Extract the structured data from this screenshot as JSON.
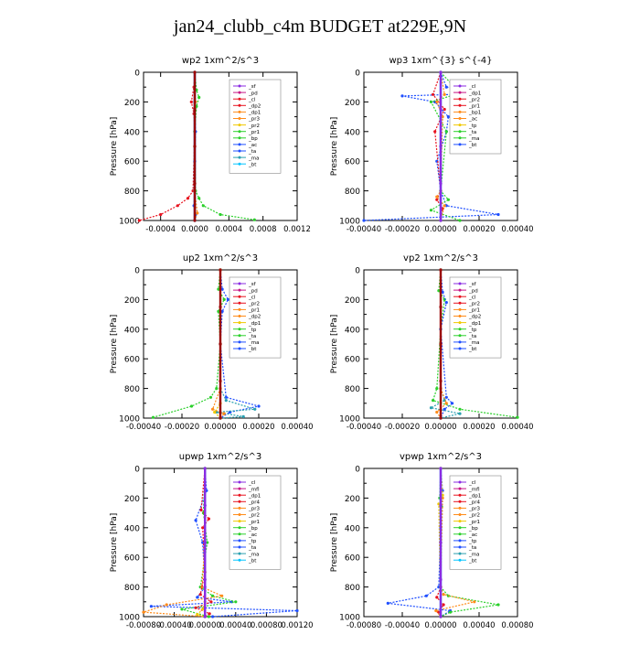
{
  "page_title": "jan24_clubb_c4m  BUDGET at229E,9N",
  "colors": {
    "purple": "#8a2be2",
    "magenta": "#c71585",
    "red": "#e8131f",
    "orange": "#ff8c1a",
    "yellow": "#f0c800",
    "green": "#2bd02b",
    "blue": "#1f4fff",
    "cyan": "#00c4ff",
    "darkred": "#9a0000",
    "teal": "#2aa0b0"
  },
  "chart_data": [
    {
      "type": "line",
      "title": "wp2  1xm^2/s^3",
      "ylabel": "Pressure [hPa]",
      "xlim": [
        -0.0006,
        0.0012
      ],
      "ylim": [
        1000,
        0
      ],
      "xticks": [
        -0.0004,
        0.0,
        0.0004,
        0.0008,
        0.0012
      ],
      "xtick_labels": [
        "-0.0004",
        "0.0000",
        "0.0004",
        "0.0008",
        "0.0012"
      ],
      "yticks": [
        0,
        200,
        400,
        600,
        800,
        1000
      ],
      "ytick_labels": [
        "0",
        "200",
        "400",
        "600",
        "800",
        "1000"
      ],
      "legend": [
        "_sf",
        "_pd",
        "_cl",
        "_dp2",
        "_dp1",
        "_pr3",
        "_pr2",
        "_pr1",
        "_bp",
        "_ac",
        "_ta",
        "_ma",
        "_bt"
      ],
      "series": [
        {
          "name": "_pd",
          "color": "purple",
          "x": [
            0,
            0,
            0,
            0,
            0,
            0
          ],
          "y": [
            0,
            200,
            400,
            600,
            800,
            1000
          ]
        },
        {
          "name": "_dp2",
          "color": "red",
          "x": [
            0,
            -1e-05,
            -4e-05,
            -1e-05,
            0,
            -2e-05,
            -8e-05,
            -0.0002,
            -0.0004,
            -0.00065
          ],
          "y": [
            0,
            100,
            200,
            280,
            400,
            800,
            850,
            900,
            960,
            1000
          ]
        },
        {
          "name": "_bp",
          "color": "green",
          "x": [
            0,
            2e-05,
            5e-05,
            2e-05,
            0,
            1e-05,
            5e-05,
            0.0001,
            0.0003,
            0.0007
          ],
          "y": [
            0,
            120,
            170,
            230,
            400,
            800,
            850,
            900,
            960,
            995
          ]
        },
        {
          "name": "_ta",
          "color": "blue",
          "x": [
            0,
            0,
            1e-05,
            0,
            0,
            -1e-05,
            1e-05,
            0
          ],
          "y": [
            0,
            200,
            400,
            600,
            800,
            900,
            960,
            1000
          ]
        },
        {
          "name": "_pr1",
          "color": "orange",
          "x": [
            0,
            1e-05,
            0,
            0,
            3e-05,
            0
          ],
          "y": [
            0,
            200,
            500,
            800,
            950,
            1000
          ]
        },
        {
          "name": "_bt",
          "color": "cyan",
          "x": [
            0,
            0,
            0,
            0,
            0
          ],
          "y": [
            0,
            250,
            500,
            750,
            1000
          ]
        },
        {
          "name": "_cl",
          "color": "darkred",
          "x": [
            0,
            0,
            0,
            0,
            0
          ],
          "y": [
            0,
            250,
            500,
            750,
            1000
          ]
        }
      ]
    },
    {
      "type": "line",
      "title": "wp3  1xm^{3} s^{-4}",
      "ylabel": "Pressure [hPa]",
      "xlim": [
        -0.0004,
        0.0004
      ],
      "ylim": [
        1000,
        0
      ],
      "xticks": [
        -0.0004,
        -0.0002,
        0.0,
        0.0002,
        0.0004
      ],
      "xtick_labels": [
        "-0.00040",
        "-0.00020",
        "0.00000",
        "0.00020",
        "0.00040"
      ],
      "yticks": [
        0,
        200,
        400,
        600,
        800,
        1000
      ],
      "ytick_labels": [
        "0",
        "200",
        "400",
        "600",
        "800",
        "1000"
      ],
      "legend": [
        "_cl",
        "_dp1",
        "_pr2",
        "_pr1",
        "_bp1",
        "_ac",
        "_tp",
        "_ta",
        "_ma",
        "_bt"
      ],
      "series": [
        {
          "name": "_ta",
          "color": "blue",
          "x": [
            0,
            3e-05,
            0.0003,
            -0.0002,
            -3e-05,
            4e-05,
            3e-05,
            -2e-05,
            0,
            3e-05,
            0.0003,
            -0.0004
          ],
          "y": [
            0,
            100,
            140,
            160,
            200,
            300,
            400,
            600,
            800,
            900,
            960,
            1000
          ]
        },
        {
          "name": "_dp1",
          "color": "red",
          "x": [
            0,
            -4e-05,
            2e-05,
            -3e-05,
            0,
            -2e-05,
            1e-05,
            0
          ],
          "y": [
            0,
            150,
            250,
            400,
            800,
            860,
            920,
            1000
          ]
        },
        {
          "name": "_ac",
          "color": "green",
          "x": [
            0,
            0.0001,
            -5e-05,
            3e-05,
            0,
            4e-05,
            -5e-05,
            0.0001
          ],
          "y": [
            0,
            140,
            200,
            400,
            800,
            860,
            930,
            1000
          ]
        },
        {
          "name": "_pr2",
          "color": "orange",
          "x": [
            0,
            2e-05,
            -2e-05,
            1e-05,
            0,
            -2e-05,
            2e-05,
            0
          ],
          "y": [
            0,
            150,
            200,
            300,
            800,
            840,
            900,
            1000
          ]
        },
        {
          "name": "_bt",
          "color": "cyan",
          "x": [
            0,
            0,
            0,
            0,
            0
          ],
          "y": [
            0,
            250,
            500,
            750,
            1000
          ]
        },
        {
          "name": "_cl",
          "color": "purple",
          "x": [
            0,
            0,
            0,
            0,
            0
          ],
          "y": [
            0,
            250,
            500,
            750,
            1000
          ]
        }
      ]
    },
    {
      "type": "line",
      "title": "up2  1xm^2/s^3",
      "ylabel": "Pressure [hPa]",
      "xlim": [
        -0.0004,
        0.0004
      ],
      "ylim": [
        1000,
        0
      ],
      "xticks": [
        -0.0004,
        -0.0002,
        0.0,
        0.0002,
        0.0004
      ],
      "xtick_labels": [
        "-0.00040",
        "-0.00020",
        "0.00000",
        "0.00020",
        "0.00040"
      ],
      "yticks": [
        0,
        200,
        400,
        600,
        800,
        1000
      ],
      "ytick_labels": [
        "0",
        "200",
        "400",
        "600",
        "800",
        "1000"
      ],
      "legend": [
        "_sf",
        "_pd",
        "_cl",
        "_pr2",
        "_pr1",
        "_dp2",
        "_dp1",
        "_tp",
        "_ta",
        "_ma",
        "_bt"
      ],
      "series": [
        {
          "name": "_dp1",
          "color": "green",
          "x": [
            0,
            -1e-05,
            2e-05,
            -1e-05,
            0,
            -2e-05,
            -5e-05,
            -0.00015,
            -0.00035
          ],
          "y": [
            0,
            130,
            200,
            280,
            500,
            800,
            860,
            920,
            995
          ]
        },
        {
          "name": "_tp",
          "color": "blue",
          "x": [
            0,
            1e-05,
            4e-05,
            1e-05,
            0,
            3e-05,
            0.0002,
            5e-05,
            0
          ],
          "y": [
            0,
            130,
            200,
            280,
            500,
            860,
            920,
            960,
            1000
          ]
        },
        {
          "name": "_ta",
          "color": "teal",
          "x": [
            0,
            0,
            3e-05,
            0.00018,
            -2e-05,
            0.00012,
            0
          ],
          "y": [
            0,
            800,
            880,
            940,
            960,
            990,
            1000
          ]
        },
        {
          "name": "_pr1",
          "color": "orange",
          "x": [
            0,
            0,
            0,
            -4e-05,
            2e-05,
            0
          ],
          "y": [
            0,
            500,
            800,
            940,
            970,
            1000
          ]
        },
        {
          "name": "_dp2",
          "color": "yellow",
          "x": [
            0,
            0,
            -3e-05,
            0
          ],
          "y": [
            0,
            900,
            960,
            1000
          ]
        },
        {
          "name": "_pd",
          "color": "darkred",
          "x": [
            0,
            0,
            0,
            0,
            0
          ],
          "y": [
            0,
            250,
            500,
            750,
            1000
          ]
        }
      ]
    },
    {
      "type": "line",
      "title": "vp2  1xm^2/s^3",
      "ylabel": "Pressure [hPa]",
      "xlim": [
        -0.0004,
        0.0004
      ],
      "ylim": [
        1000,
        0
      ],
      "xticks": [
        -0.0004,
        -0.0002,
        0.0,
        0.0002,
        0.0004
      ],
      "xtick_labels": [
        "-0.00040",
        "-0.00020",
        "0.00000",
        "0.00020",
        "0.00040"
      ],
      "yticks": [
        0,
        200,
        400,
        600,
        800,
        1000
      ],
      "ytick_labels": [
        "0",
        "200",
        "400",
        "600",
        "800",
        "1000"
      ],
      "legend": [
        "_sf",
        "_pd",
        "_cl",
        "_pr2",
        "_pr1",
        "_dp2",
        "_dp1",
        "_tp",
        "_ta",
        "_ma",
        "_bt"
      ],
      "series": [
        {
          "name": "_dp1",
          "color": "green",
          "x": [
            0,
            -1e-05,
            2e-05,
            0,
            -2e-05,
            -4e-05,
            0.0001,
            0.0004
          ],
          "y": [
            0,
            140,
            200,
            400,
            800,
            880,
            940,
            995
          ]
        },
        {
          "name": "_tp",
          "color": "blue",
          "x": [
            0,
            1e-05,
            3e-05,
            0,
            3e-05,
            6e-05,
            2e-05,
            0
          ],
          "y": [
            0,
            150,
            220,
            400,
            860,
            900,
            940,
            1000
          ]
        },
        {
          "name": "_ta",
          "color": "teal",
          "x": [
            0,
            0,
            2e-05,
            -5e-05,
            0.0001,
            0
          ],
          "y": [
            0,
            800,
            880,
            930,
            970,
            1000
          ]
        },
        {
          "name": "_pr1",
          "color": "orange",
          "x": [
            0,
            0,
            3e-05,
            -2e-05,
            0
          ],
          "y": [
            0,
            800,
            900,
            960,
            1000
          ]
        },
        {
          "name": "_pd",
          "color": "darkred",
          "x": [
            0,
            0,
            0,
            0,
            0
          ],
          "y": [
            0,
            250,
            500,
            750,
            1000
          ]
        }
      ]
    },
    {
      "type": "line",
      "title": "upwp  1xm^2/s^3",
      "ylabel": "Pressure [hPa]",
      "xlim": [
        -0.0008,
        0.0012
      ],
      "ylim": [
        1000,
        0
      ],
      "xticks": [
        -0.0008,
        -0.0004,
        0.0,
        0.0004,
        0.0008,
        0.0012
      ],
      "xtick_labels": [
        "-0.00080",
        "-0.00040",
        "0.00000",
        "0.00040",
        "0.00080",
        "0.00120"
      ],
      "yticks": [
        0,
        200,
        400,
        600,
        800,
        1000
      ],
      "ytick_labels": [
        "0",
        "200",
        "400",
        "600",
        "800",
        "1000"
      ],
      "legend": [
        "_cl",
        "_mfl",
        "_dp1",
        "_pr4",
        "_pr3",
        "_pr2",
        "_pr1",
        "_bp",
        "_ac",
        "_tp",
        "_ta",
        "_ma",
        "_bt"
      ],
      "series": [
        {
          "name": "_ta",
          "color": "blue",
          "x": [
            0,
            2e-05,
            -0.00012,
            -3e-05,
            0,
            -0.0001,
            0.00035,
            -0.0007,
            0.0012,
            0.0001
          ],
          "y": [
            0,
            150,
            350,
            500,
            800,
            870,
            900,
            930,
            960,
            1000
          ]
        },
        {
          "name": "_bp",
          "color": "green",
          "x": [
            0,
            -2e-05,
            3e-05,
            -6e-05,
            0.0001,
            0.0004,
            -0.0003,
            5e-05
          ],
          "y": [
            0,
            300,
            500,
            800,
            860,
            900,
            950,
            1000
          ]
        },
        {
          "name": "_pr1",
          "color": "orange",
          "x": [
            0,
            0,
            -4e-05,
            0.00022,
            -0.0005,
            -0.0008,
            0
          ],
          "y": [
            0,
            500,
            800,
            860,
            920,
            970,
            1000
          ]
        },
        {
          "name": "_dp1",
          "color": "red",
          "x": [
            0,
            -5e-05,
            5e-05,
            -3e-05,
            0,
            -6e-05,
            8e-05,
            -0.00012,
            6e-05,
            0
          ],
          "y": [
            0,
            280,
            340,
            400,
            700,
            850,
            900,
            940,
            980,
            1000
          ]
        },
        {
          "name": "_pr3",
          "color": "yellow",
          "x": [
            0,
            0,
            -3e-05,
            -0.0001,
            0
          ],
          "y": [
            0,
            900,
            950,
            985,
            1000
          ]
        },
        {
          "name": "_bt",
          "color": "cyan",
          "x": [
            0,
            0,
            0,
            0,
            0
          ],
          "y": [
            0,
            250,
            500,
            750,
            1000
          ]
        },
        {
          "name": "_mfl",
          "color": "purple",
          "x": [
            0,
            0,
            0,
            0,
            0
          ],
          "y": [
            0,
            250,
            500,
            750,
            1000
          ]
        }
      ]
    },
    {
      "type": "line",
      "title": "vpwp  1xm^2/s^3",
      "ylabel": "Pressure [hPa]",
      "xlim": [
        -0.0008,
        0.0008
      ],
      "ylim": [
        1000,
        0
      ],
      "xticks": [
        -0.0008,
        -0.0004,
        0.0,
        0.0004,
        0.0008
      ],
      "xtick_labels": [
        "-0.00080",
        "-0.00040",
        "0.00000",
        "0.00040",
        "0.00080"
      ],
      "yticks": [
        0,
        200,
        400,
        600,
        800,
        1000
      ],
      "ytick_labels": [
        "0",
        "200",
        "400",
        "600",
        "800",
        "1000"
      ],
      "legend": [
        "_cl",
        "_mfl",
        "_dp1",
        "_pr4",
        "_pr3",
        "_pr2",
        "_pr1",
        "_bp",
        "_ac",
        "_tp",
        "_ta",
        "_ma",
        "_bt"
      ],
      "series": [
        {
          "name": "_ta",
          "color": "blue",
          "x": [
            0,
            2e-05,
            0,
            -2e-05,
            -0.00015,
            -0.00055,
            0.0001,
            0
          ],
          "y": [
            0,
            150,
            400,
            800,
            860,
            910,
            960,
            1000
          ]
        },
        {
          "name": "_bp",
          "color": "green",
          "x": [
            0,
            -1e-05,
            1e-05,
            0,
            8e-05,
            0.0006,
            0.0001,
            0
          ],
          "y": [
            0,
            200,
            260,
            800,
            860,
            920,
            970,
            1000
          ]
        },
        {
          "name": "_pr1",
          "color": "orange",
          "x": [
            0,
            2e-05,
            0,
            3e-05,
            0.00035,
            -5e-05,
            0
          ],
          "y": [
            0,
            200,
            800,
            850,
            900,
            960,
            1000
          ]
        },
        {
          "name": "_dp1",
          "color": "red",
          "x": [
            0,
            0,
            -4e-05,
            3e-05,
            -2e-05,
            0
          ],
          "y": [
            0,
            800,
            870,
            920,
            970,
            1000
          ]
        },
        {
          "name": "_pr3",
          "color": "yellow",
          "x": [
            0,
            2e-05,
            -2e-05,
            0
          ],
          "y": [
            0,
            180,
            240,
            1000
          ]
        },
        {
          "name": "_bt",
          "color": "cyan",
          "x": [
            0,
            0,
            0,
            0,
            0
          ],
          "y": [
            0,
            250,
            500,
            750,
            1000
          ]
        },
        {
          "name": "_mfl",
          "color": "purple",
          "x": [
            0,
            0,
            0,
            0,
            0
          ],
          "y": [
            0,
            250,
            500,
            750,
            1000
          ]
        }
      ]
    }
  ]
}
